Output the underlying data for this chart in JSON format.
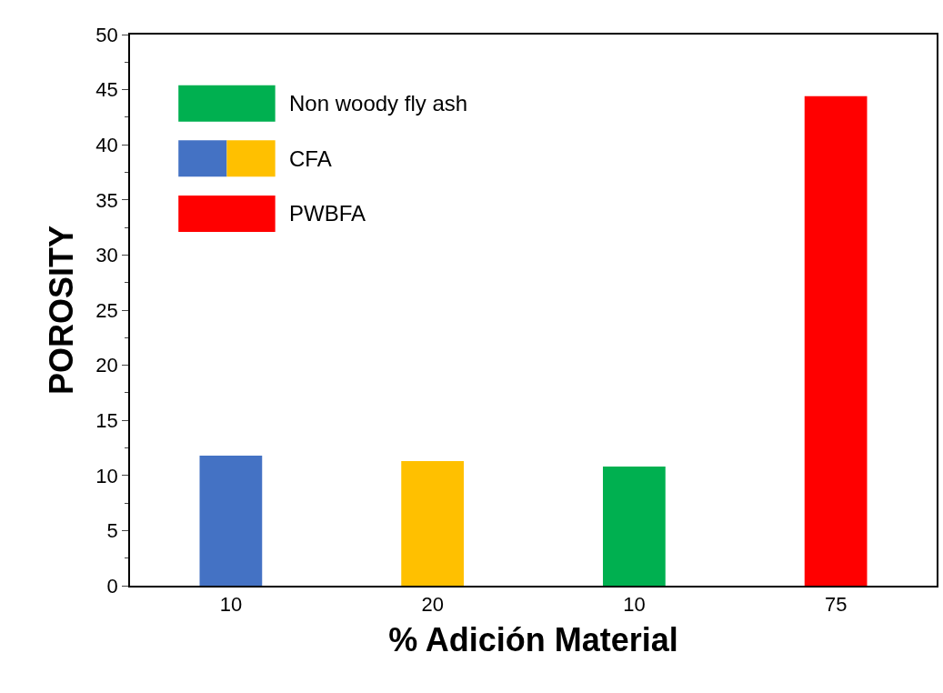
{
  "chart_data": {
    "type": "bar",
    "xlabel": "% Adición Material",
    "ylabel": "POROSITY",
    "categories": [
      "10",
      "20",
      "10",
      "75"
    ],
    "series": [
      {
        "name": "Non woody fly ash",
        "color": "#00b050",
        "values": [
          null,
          null,
          10.8,
          null
        ]
      },
      {
        "name": "CFA",
        "colors": [
          "#4472c4",
          "#ffc000",
          null,
          null
        ],
        "values": [
          11.8,
          11.3,
          null,
          null
        ]
      },
      {
        "name": "PWBFA",
        "color": "#ff0000",
        "values": [
          null,
          null,
          null,
          44.4
        ]
      }
    ],
    "ylim": [
      0,
      50
    ],
    "yticks": [
      0,
      5,
      10,
      15,
      20,
      25,
      30,
      35,
      40,
      45,
      50
    ],
    "legend": "top left"
  }
}
